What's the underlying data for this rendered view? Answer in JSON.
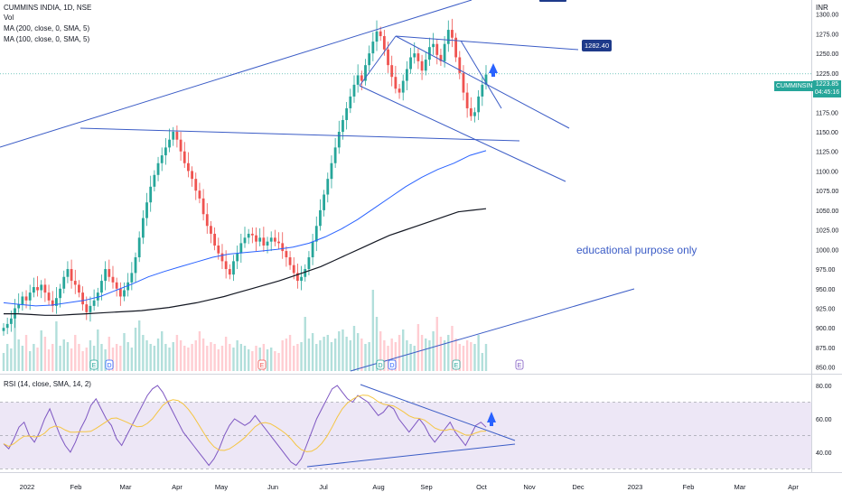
{
  "header": {
    "title": "CUMMINS INDIA, 1D, NSE",
    "vol_label": "Vol",
    "ma200_label": "MA (200, close, 0, SMA, 5)",
    "ma100_label": "MA (100, close, 0, SMA, 5)",
    "currency": "INR"
  },
  "rsi": {
    "label": "RSI (14, close, SMA, 14, 2)",
    "ticks": [
      "80.00",
      "60.00",
      "40.00"
    ],
    "values": [
      45,
      42,
      48,
      55,
      58,
      50,
      46,
      52,
      60,
      66,
      58,
      50,
      44,
      40,
      46,
      54,
      60,
      68,
      72,
      66,
      60,
      56,
      48,
      44,
      50,
      56,
      62,
      68,
      74,
      78,
      80,
      76,
      70,
      64,
      58,
      52,
      48,
      44,
      40,
      36,
      32,
      36,
      42,
      50,
      56,
      60,
      58,
      56,
      58,
      62,
      58,
      54,
      50,
      46,
      42,
      38,
      34,
      32,
      36,
      44,
      52,
      60,
      66,
      72,
      78,
      80,
      76,
      72,
      70,
      74,
      72,
      70,
      66,
      62,
      64,
      68,
      66,
      60,
      56,
      52,
      56,
      60,
      56,
      50,
      46,
      50,
      54,
      58,
      52,
      48,
      44,
      50,
      56,
      58,
      55
    ]
  },
  "annotations": {
    "level_tag": "1282.40",
    "note": "educational purpose only",
    "symbol_tag": "CUMMINSIND",
    "last_price": "1223.85",
    "countdown": "04:45:16"
  },
  "events": [
    {
      "glyph": "E",
      "color": "#26a69a"
    },
    {
      "glyph": "D",
      "color": "#2962ff"
    },
    {
      "glyph": "E",
      "color": "#ef5350"
    },
    {
      "glyph": "D",
      "color": "#26a69a"
    },
    {
      "glyph": "D",
      "color": "#2962ff"
    },
    {
      "glyph": "E",
      "color": "#26a69a"
    },
    {
      "glyph": "E",
      "color": "#7e57c2"
    }
  ],
  "colors": {
    "up": "#26a69a",
    "down": "#ef5350",
    "ma200": "#131722",
    "ma100": "#2962ff",
    "trendline": "#3b5cc6",
    "rsi": "#7e57c2",
    "rsi_ma": "#f5c542",
    "rsi_band": "#ede7f6"
  },
  "chart_data": {
    "type": "candlestick",
    "symbol": "CUMMINS INDIA",
    "interval": "1D",
    "exchange": "NSE",
    "x_labels": [
      "2022",
      "Feb",
      "Mar",
      "Apr",
      "May",
      "Jun",
      "Jul",
      "Aug",
      "Sep",
      "Oct",
      "Nov",
      "Dec",
      "2023",
      "Feb",
      "Mar",
      "Apr"
    ],
    "y_ticks": [
      "1300.00",
      "1275.00",
      "1250.00",
      "1225.00",
      "1200.00",
      "1175.00",
      "1150.00",
      "1125.00",
      "1100.00",
      "1075.00",
      "1050.00",
      "1025.00",
      "1000.00",
      "975.00",
      "950.00",
      "925.00",
      "900.00",
      "875.00",
      "850.00"
    ],
    "ylim": [
      845,
      1310
    ],
    "closes": [
      900,
      905,
      912,
      925,
      930,
      940,
      935,
      945,
      952,
      948,
      955,
      945,
      935,
      928,
      938,
      950,
      965,
      975,
      960,
      955,
      945,
      930,
      920,
      928,
      935,
      945,
      960,
      975,
      965,
      958,
      950,
      940,
      948,
      958,
      970,
      990,
      1015,
      1040,
      1060,
      1080,
      1095,
      1110,
      1120,
      1130,
      1140,
      1150,
      1140,
      1125,
      1110,
      1100,
      1090,
      1075,
      1065,
      1045,
      1030,
      1020,
      1005,
      995,
      985,
      975,
      968,
      985,
      995,
      1008,
      1015,
      1020,
      1018,
      1010,
      1015,
      1005,
      1010,
      1015,
      1010,
      1008,
      998,
      990,
      980,
      970,
      960,
      965,
      975,
      990,
      1010,
      1030,
      1050,
      1070,
      1090,
      1110,
      1130,
      1150,
      1165,
      1180,
      1195,
      1210,
      1222,
      1215,
      1235,
      1250,
      1265,
      1278,
      1272,
      1255,
      1235,
      1220,
      1205,
      1200,
      1215,
      1230,
      1245,
      1250,
      1240,
      1228,
      1242,
      1258,
      1262,
      1248,
      1240,
      1262,
      1280,
      1270,
      1245,
      1225,
      1200,
      1180,
      1170,
      1175,
      1195,
      1210,
      1223
    ],
    "ma200": [
      918,
      918,
      917,
      916,
      916,
      917,
      918,
      919,
      920,
      921,
      922,
      924,
      926,
      929,
      932,
      936,
      940,
      945,
      950,
      955,
      960,
      966,
      972,
      978,
      986,
      994,
      1002,
      1010,
      1018,
      1024,
      1030,
      1036,
      1042,
      1048,
      1050,
      1052
    ],
    "ma100": [
      932,
      930,
      928,
      929,
      932,
      935,
      940,
      948,
      956,
      965,
      972,
      978,
      984,
      990,
      994,
      996,
      998,
      1000,
      1003,
      1008,
      1016,
      1026,
      1038,
      1052,
      1066,
      1080,
      1092,
      1102,
      1110,
      1120,
      1126
    ],
    "level": 1282.4,
    "last": 1223.85
  }
}
